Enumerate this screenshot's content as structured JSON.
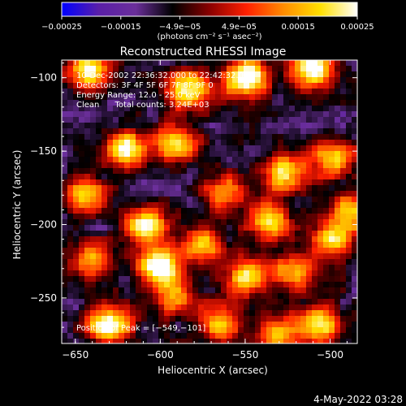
{
  "chart_data": {
    "type": "heatmap",
    "title": "Reconstructed RHESSI Image",
    "xlabel": "Heliocentric X (arcsec)",
    "ylabel": "Heliocentric Y (arcsec)",
    "xlim": [
      -658,
      -484
    ],
    "ylim": [
      -281,
      -88
    ],
    "xticks": [
      -650,
      -600,
      -550,
      -500
    ],
    "yticks": [
      -100,
      -150,
      -200,
      -250
    ],
    "xtick_labels": [
      "−650",
      "−600",
      "−550",
      "−500"
    ],
    "ytick_labels": [
      "−100",
      "−150",
      "−200",
      "−250"
    ],
    "colorbar": {
      "range": [
        -0.00025,
        0.00025
      ],
      "tick_labels": [
        "−0.00025",
        "−0.00015",
        "−4.9e−05",
        "4.9e−05",
        "0.00015",
        "0.00025"
      ],
      "unit_label": "(photons cm⁻² s⁻¹ asec⁻²)",
      "colors": [
        "#0000ff",
        "#5a1fa8",
        "#6b2f9a",
        "#000000",
        "#8a0000",
        "#ff2000",
        "#ff8c00",
        "#ffe000",
        "#ffffff"
      ]
    },
    "annotations": {
      "time": "10-Dec-2002 22:36:32.000 to 22:42:32.000",
      "detectors": "Detectors: 3F 4F 5F 6F 7F 8F 9F 0",
      "energy": "Energy Range: 12.0 - 25.0 keV",
      "method": "Clean      Total counts: 3.24E+03",
      "peak": "Position of Peak = [−549,−101]"
    },
    "peak_position": [
      -549,
      -101
    ],
    "blobs": [
      {
        "x": -600,
        "y": -229,
        "peak": 0.00025
      },
      {
        "x": -630,
        "y": -268,
        "peak": 0.00023
      },
      {
        "x": -549,
        "y": -101,
        "peak": 0.00025
      },
      {
        "x": -510,
        "y": -94,
        "peak": 0.00022
      },
      {
        "x": -643,
        "y": -95,
        "peak": 0.00016
      },
      {
        "x": -583,
        "y": -108,
        "peak": 0.00018
      },
      {
        "x": -620,
        "y": -148,
        "peak": 0.00015
      },
      {
        "x": -590,
        "y": -145,
        "peak": 0.00013
      },
      {
        "x": -527,
        "y": -165,
        "peak": 0.00015
      },
      {
        "x": -498,
        "y": -155,
        "peak": 0.00014
      },
      {
        "x": -608,
        "y": -200,
        "peak": 0.00017
      },
      {
        "x": -575,
        "y": -212,
        "peak": 0.0001
      },
      {
        "x": -549,
        "y": -236,
        "peak": 0.00016
      },
      {
        "x": -536,
        "y": -198,
        "peak": 0.00013
      },
      {
        "x": -520,
        "y": -232,
        "peak": 0.0001
      },
      {
        "x": -498,
        "y": -210,
        "peak": 0.00012
      },
      {
        "x": -506,
        "y": -268,
        "peak": 0.00014
      },
      {
        "x": -565,
        "y": -268,
        "peak": 9e-05
      },
      {
        "x": -645,
        "y": -180,
        "peak": 0.00012
      },
      {
        "x": -640,
        "y": -225,
        "peak": 8e-05
      },
      {
        "x": -562,
        "y": -178,
        "peak": 8e-05
      },
      {
        "x": -590,
        "y": -250,
        "peak": 7e-05
      },
      {
        "x": -530,
        "y": -275,
        "peak": 9e-05
      },
      {
        "x": -487,
        "y": -190,
        "peak": 0.0001
      }
    ]
  },
  "footer": {
    "date": "4-May-2022 03:28"
  }
}
